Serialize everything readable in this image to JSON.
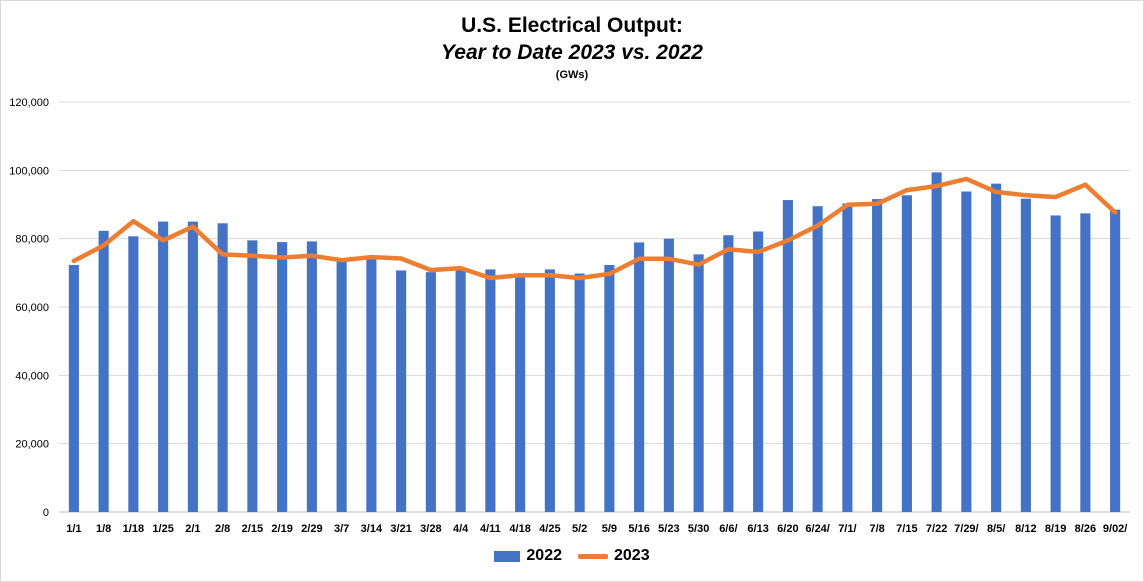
{
  "chart_data": {
    "type": "bar",
    "title": "U.S. Electrical Output:",
    "subtitle": "Year to Date 2023 vs. 2022",
    "unit_label": "(GWs)",
    "categories": [
      "1/1",
      "1/8",
      "1/18",
      "1/25",
      "2/1",
      "2/8",
      "2/15",
      "2/19",
      "2/29",
      "3/7",
      "3/14",
      "3/21",
      "3/28",
      "4/4",
      "4/11",
      "4/18",
      "4/25",
      "5/2",
      "5/9",
      "5/16",
      "5/23",
      "5/30",
      "6/6/",
      "6/13",
      "6/20",
      "6/24/",
      "7/1/",
      "7/8",
      "7/15",
      "7/22",
      "7/29/",
      "8/5/",
      "8/12",
      "8/19",
      "8/26",
      "9/02/"
    ],
    "ylim": [
      0,
      120000
    ],
    "yticks": [
      0,
      20000,
      40000,
      60000,
      80000,
      100000,
      120000
    ],
    "ytick_labels": [
      "0",
      "20,000",
      "40,000",
      "60,000",
      "80,000",
      "100,000",
      "120,000"
    ],
    "grid": true,
    "legend_position": "bottom",
    "series": [
      {
        "name": "2022",
        "type": "bar",
        "color": "#4472c4",
        "values": [
          72300,
          82300,
          80700,
          85000,
          85000,
          84500,
          79500,
          79000,
          79200,
          74000,
          74100,
          70700,
          70200,
          71000,
          71000,
          69600,
          71000,
          69800,
          72300,
          78900,
          80000,
          75400,
          81000,
          82100,
          91300,
          89500,
          90300,
          91600,
          92700,
          99400,
          93800,
          96100,
          91700,
          86800,
          87400,
          88500
        ]
      },
      {
        "name": "2023",
        "type": "line",
        "color": "#ed7d31",
        "values": [
          73500,
          78000,
          85100,
          79500,
          83500,
          75400,
          75000,
          74500,
          75000,
          73700,
          74600,
          74200,
          70800,
          71400,
          68500,
          69300,
          69300,
          68500,
          69700,
          74100,
          74100,
          72400,
          76900,
          76100,
          79500,
          83800,
          89900,
          90200,
          94200,
          95400,
          97500,
          93700,
          92700,
          92200,
          95800,
          87700
        ]
      }
    ]
  }
}
